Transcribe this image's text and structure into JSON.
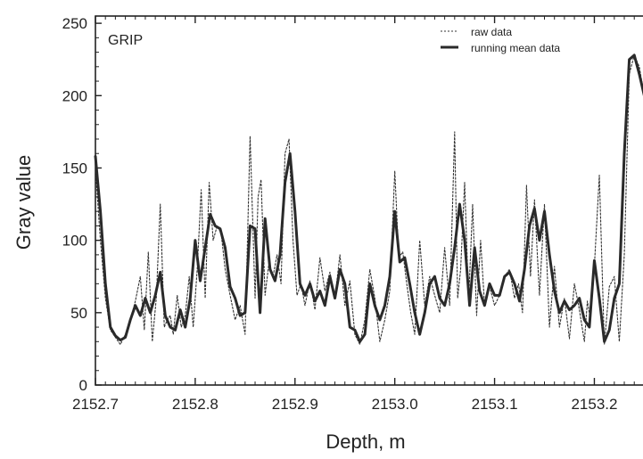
{
  "chart_data": {
    "type": "line",
    "panel_label": "GRIP",
    "xlabel": "Depth, m",
    "ylabel": "Gray value",
    "xlim": [
      2152.7,
      2153.255
    ],
    "ylim": [
      0,
      255
    ],
    "xticks": [
      2152.7,
      2152.8,
      2152.9,
      2153.0,
      2153.1,
      2153.2
    ],
    "xtick_labels": [
      "2152.7",
      "2152.8",
      "2152.9",
      "2153.0",
      "2153.1",
      "2153.2"
    ],
    "yticks": [
      0,
      50,
      100,
      150,
      200,
      250
    ],
    "ytick_labels": [
      "0",
      "50",
      "100",
      "150",
      "200",
      "250"
    ],
    "grid": false,
    "legend_position": "top-right",
    "series": [
      {
        "name": "raw data",
        "style": "dotted",
        "color": "#333333",
        "x": [
          2152.7,
          2152.705,
          2152.71,
          2152.715,
          2152.72,
          2152.725,
          2152.73,
          2152.735,
          2152.74,
          2152.745,
          2152.749,
          2152.753,
          2152.757,
          2152.761,
          2152.765,
          2152.769,
          2152.772,
          2152.775,
          2152.778,
          2152.782,
          2152.786,
          2152.79,
          2152.794,
          2152.798,
          2152.802,
          2152.806,
          2152.81,
          2152.814,
          2152.818,
          2152.822,
          2152.826,
          2152.83,
          2152.835,
          2152.84,
          2152.845,
          2152.85,
          2152.855,
          2152.86,
          2152.863,
          2152.866,
          2152.87,
          2152.874,
          2152.878,
          2152.882,
          2152.886,
          2152.89,
          2152.894,
          2152.898,
          2152.902,
          2152.906,
          2152.91,
          2152.915,
          2152.92,
          2152.925,
          2152.93,
          2152.935,
          2152.94,
          2152.945,
          2152.95,
          2152.955,
          2152.96,
          2152.965,
          2152.97,
          2152.975,
          2152.98,
          2152.985,
          2152.99,
          2152.995,
          2153.0,
          2153.004,
          2153.008,
          2153.012,
          2153.016,
          2153.02,
          2153.025,
          2153.03,
          2153.035,
          2153.04,
          2153.045,
          2153.05,
          2153.055,
          2153.06,
          2153.063,
          2153.066,
          2153.07,
          2153.074,
          2153.078,
          2153.082,
          2153.086,
          2153.09,
          2153.095,
          2153.1,
          2153.105,
          2153.11,
          2153.115,
          2153.12,
          2153.124,
          2153.128,
          2153.132,
          2153.136,
          2153.14,
          2153.145,
          2153.15,
          2153.155,
          2153.16,
          2153.165,
          2153.17,
          2153.175,
          2153.18,
          2153.185,
          2153.19,
          2153.193,
          2153.196,
          2153.2,
          2153.205,
          2153.21,
          2153.215,
          2153.22,
          2153.225,
          2153.23,
          2153.235,
          2153.24,
          2153.245,
          2153.25,
          2153.255
        ],
        "y": [
          150,
          100,
          60,
          38,
          33,
          28,
          35,
          45,
          58,
          75,
          38,
          92,
          30,
          60,
          125,
          40,
          45,
          48,
          35,
          62,
          40,
          48,
          75,
          40,
          80,
          135,
          60,
          140,
          100,
          110,
          105,
          80,
          62,
          45,
          55,
          35,
          172,
          60,
          130,
          142,
          62,
          85,
          75,
          90,
          70,
          160,
          170,
          100,
          62,
          70,
          55,
          72,
          52,
          88,
          65,
          78,
          60,
          90,
          55,
          72,
          35,
          28,
          45,
          80,
          60,
          30,
          45,
          65,
          148,
          88,
          92,
          70,
          50,
          35,
          100,
          55,
          75,
          62,
          50,
          95,
          55,
          175,
          60,
          80,
          140,
          58,
          125,
          48,
          100,
          55,
          68,
          55,
          62,
          75,
          80,
          60,
          70,
          50,
          138,
          75,
          128,
          62,
          125,
          40,
          82,
          40,
          60,
          32,
          70,
          52,
          30,
          58,
          45,
          82,
          145,
          28,
          68,
          75,
          30,
          90,
          215,
          228,
          220,
          200,
          185
        ]
      },
      {
        "name": "running mean data",
        "style": "solid",
        "color": "#2a2a2a",
        "x": [
          2152.7,
          2152.705,
          2152.71,
          2152.715,
          2152.72,
          2152.725,
          2152.73,
          2152.735,
          2152.74,
          2152.745,
          2152.75,
          2152.755,
          2152.76,
          2152.765,
          2152.77,
          2152.775,
          2152.78,
          2152.785,
          2152.79,
          2152.795,
          2152.8,
          2152.805,
          2152.81,
          2152.815,
          2152.82,
          2152.825,
          2152.83,
          2152.835,
          2152.84,
          2152.845,
          2152.85,
          2152.855,
          2152.86,
          2152.865,
          2152.87,
          2152.875,
          2152.88,
          2152.885,
          2152.89,
          2152.895,
          2152.9,
          2152.905,
          2152.91,
          2152.915,
          2152.92,
          2152.925,
          2152.93,
          2152.935,
          2152.94,
          2152.945,
          2152.95,
          2152.955,
          2152.96,
          2152.965,
          2152.97,
          2152.975,
          2152.98,
          2152.985,
          2152.99,
          2152.995,
          2153.0,
          2153.005,
          2153.01,
          2153.015,
          2153.02,
          2153.025,
          2153.03,
          2153.035,
          2153.04,
          2153.045,
          2153.05,
          2153.055,
          2153.06,
          2153.065,
          2153.07,
          2153.075,
          2153.08,
          2153.085,
          2153.09,
          2153.095,
          2153.1,
          2153.105,
          2153.11,
          2153.115,
          2153.12,
          2153.125,
          2153.13,
          2153.135,
          2153.14,
          2153.145,
          2153.15,
          2153.155,
          2153.16,
          2153.165,
          2153.17,
          2153.175,
          2153.18,
          2153.185,
          2153.19,
          2153.195,
          2153.2,
          2153.205,
          2153.21,
          2153.215,
          2153.22,
          2153.225,
          2153.23,
          2153.235,
          2153.24,
          2153.245,
          2153.25,
          2153.255
        ],
        "y": [
          158,
          120,
          70,
          40,
          34,
          31,
          33,
          45,
          55,
          48,
          60,
          50,
          62,
          78,
          48,
          40,
          38,
          52,
          40,
          60,
          100,
          72,
          95,
          118,
          110,
          108,
          95,
          68,
          60,
          48,
          50,
          110,
          108,
          50,
          115,
          80,
          72,
          90,
          140,
          160,
          120,
          70,
          62,
          70,
          58,
          65,
          55,
          75,
          60,
          80,
          70,
          40,
          38,
          30,
          35,
          70,
          55,
          45,
          55,
          75,
          120,
          85,
          88,
          70,
          50,
          35,
          50,
          70,
          75,
          60,
          55,
          70,
          95,
          125,
          100,
          55,
          95,
          65,
          55,
          70,
          62,
          62,
          75,
          78,
          70,
          58,
          80,
          110,
          122,
          100,
          120,
          90,
          65,
          50,
          58,
          52,
          55,
          60,
          45,
          40,
          86,
          60,
          30,
          38,
          60,
          70,
          160,
          225,
          228,
          215,
          200,
          190
        ]
      }
    ]
  }
}
